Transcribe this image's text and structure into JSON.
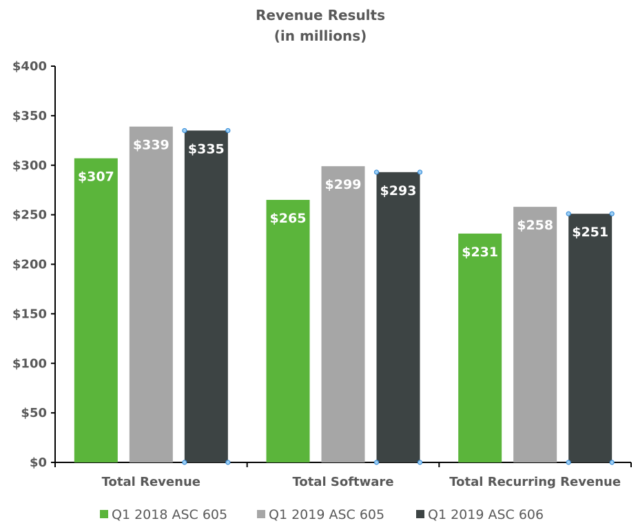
{
  "chart_data": {
    "type": "bar",
    "title": [
      "Revenue Results",
      "(in millions)"
    ],
    "xlabel": "",
    "ylabel": "",
    "ylim": [
      0,
      400
    ],
    "ytick_step": 50,
    "ytick_labels": [
      "$0",
      "$50",
      "$100",
      "$150",
      "$200",
      "$250",
      "$300",
      "$350",
      "$400"
    ],
    "grid": false,
    "legend_position": "bottom",
    "categories": [
      "Total Revenue",
      "Total Software",
      "Total Recurring Revenue"
    ],
    "series": [
      {
        "name": "Q1 2018 ASC 605",
        "values": [
          307,
          265,
          231
        ],
        "labels": [
          "$307",
          "$265",
          "$231"
        ],
        "color": "#5bb53b"
      },
      {
        "name": "Q1 2019 ASC 605",
        "values": [
          339,
          299,
          258
        ],
        "labels": [
          "$339",
          "$299",
          "$258"
        ],
        "color": "#a6a6a6"
      },
      {
        "name": "Q1 2019 ASC 606",
        "values": [
          335,
          293,
          251
        ],
        "labels": [
          "$335",
          "$293",
          "$251"
        ],
        "color": "#3d4444",
        "selected": true
      }
    ]
  }
}
